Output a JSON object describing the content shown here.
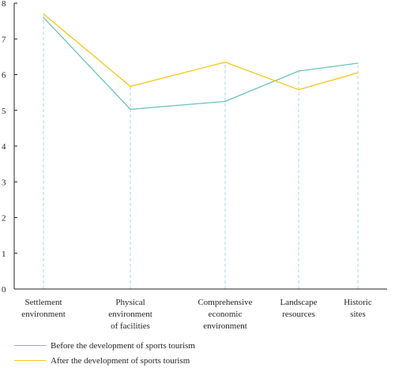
{
  "chart_data": {
    "type": "line",
    "categories": [
      [
        "Settlement",
        "environment"
      ],
      [
        "Physical",
        "environment",
        "of facilities"
      ],
      [
        "Comprehensive",
        "economic",
        "environment"
      ],
      [
        "Landscape",
        "resources"
      ],
      [
        "Historic",
        "sites"
      ]
    ],
    "series": [
      {
        "name": "Before the development of sports tourism",
        "color": "#6ec1c1",
        "values": [
          7.6,
          5.03,
          5.25,
          6.1,
          6.32
        ]
      },
      {
        "name": "After the development of sports tourism",
        "color": "#f5c518",
        "values": [
          7.7,
          5.67,
          6.35,
          5.58,
          6.05
        ]
      }
    ],
    "ylim": [
      0,
      8
    ],
    "yticks": [
      0,
      1,
      2,
      3,
      4,
      5,
      6,
      7,
      8
    ],
    "guide_line_color": "#a9d4ec",
    "axis_color": "#231f20",
    "legend_position": "bottom-left"
  }
}
